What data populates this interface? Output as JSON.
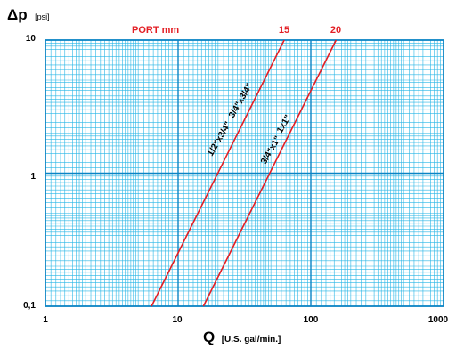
{
  "colors": {
    "grid_minor": "#29b6e6",
    "grid_major": "#0b84c4",
    "curve": "#e31e24",
    "port_text": "#e31e24",
    "text": "#000000"
  },
  "chart_data": {
    "type": "line",
    "x_scale": "log",
    "y_scale": "log",
    "xlim": [
      1,
      1000
    ],
    "ylim": [
      0.1,
      10
    ],
    "grid": true,
    "ylabel_symbol": "Δp",
    "ylabel_unit": "[psi]",
    "xlabel_symbol": "Q",
    "xlabel_unit": "[U.S. gal/min.]",
    "x_ticks": [
      "1",
      "10",
      "100",
      "1000"
    ],
    "y_ticks": [
      "10",
      "1",
      "0,1"
    ],
    "port_header": "PORT mm",
    "series": [
      {
        "name": "15",
        "labels": [
          "1/2\"x3/4\"",
          "3/4\"x3/4\""
        ],
        "x": [
          6.3,
          63
        ],
        "y": [
          0.1,
          10
        ]
      },
      {
        "name": "20",
        "labels": [
          "3/4\"x1\"",
          "1x1\""
        ],
        "x": [
          15.5,
          155
        ],
        "y": [
          0.1,
          10
        ]
      }
    ]
  }
}
